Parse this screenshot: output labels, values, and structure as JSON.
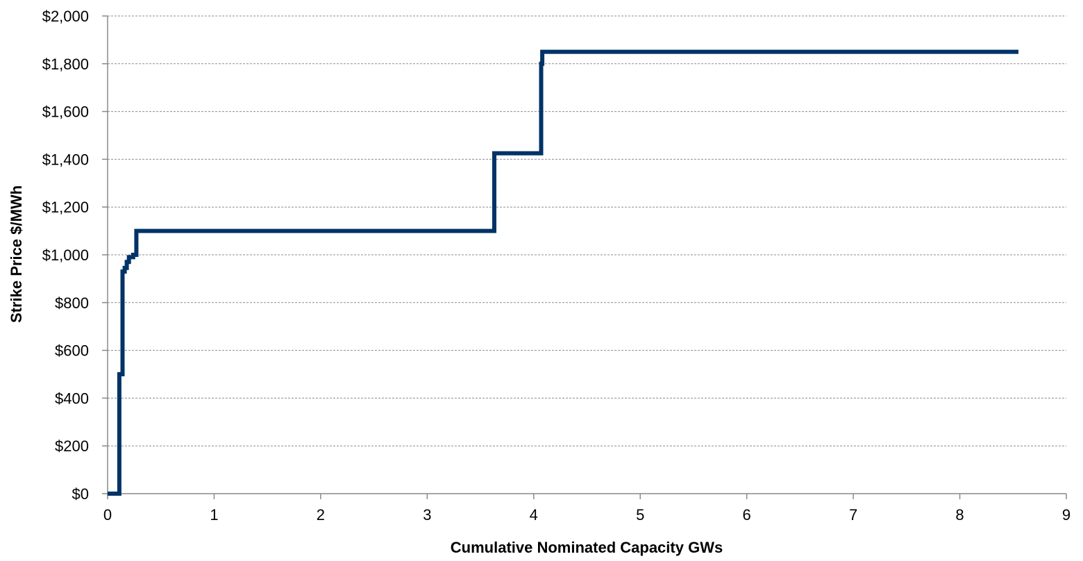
{
  "chart_data": {
    "type": "line",
    "step": true,
    "title": "",
    "xlabel": "Cumulative Nominated Capacity GWs",
    "ylabel": "Strike Price $/MWh",
    "xlim": [
      0,
      9
    ],
    "ylim": [
      0,
      2000
    ],
    "x_ticks": [
      "0",
      "1",
      "2",
      "3",
      "4",
      "5",
      "6",
      "7",
      "8",
      "9"
    ],
    "y_ticks": [
      "$0",
      "$200",
      "$400",
      "$600",
      "$800",
      "$1,000",
      "$1,200",
      "$1,400",
      "$1,600",
      "$1,800",
      "$2,000"
    ],
    "grid": "horizontal dashed",
    "legend": "none",
    "colors": {
      "line": "#003366",
      "grid": "#8c8c8c",
      "axis": "#888888"
    },
    "series": [
      {
        "x": [
          0.0,
          0.11,
          0.11,
          0.14,
          0.14,
          0.16,
          0.16,
          0.18,
          0.18,
          0.2,
          0.2,
          0.24,
          0.24,
          0.27,
          0.27,
          3.63,
          3.63,
          4.07,
          4.07,
          4.08,
          4.08,
          8.55
        ],
        "y": [
          0,
          0,
          500,
          500,
          930,
          930,
          945,
          945,
          970,
          970,
          990,
          990,
          1000,
          1000,
          1100,
          1100,
          1425,
          1425,
          1800,
          1800,
          1850,
          1850
        ]
      }
    ]
  }
}
